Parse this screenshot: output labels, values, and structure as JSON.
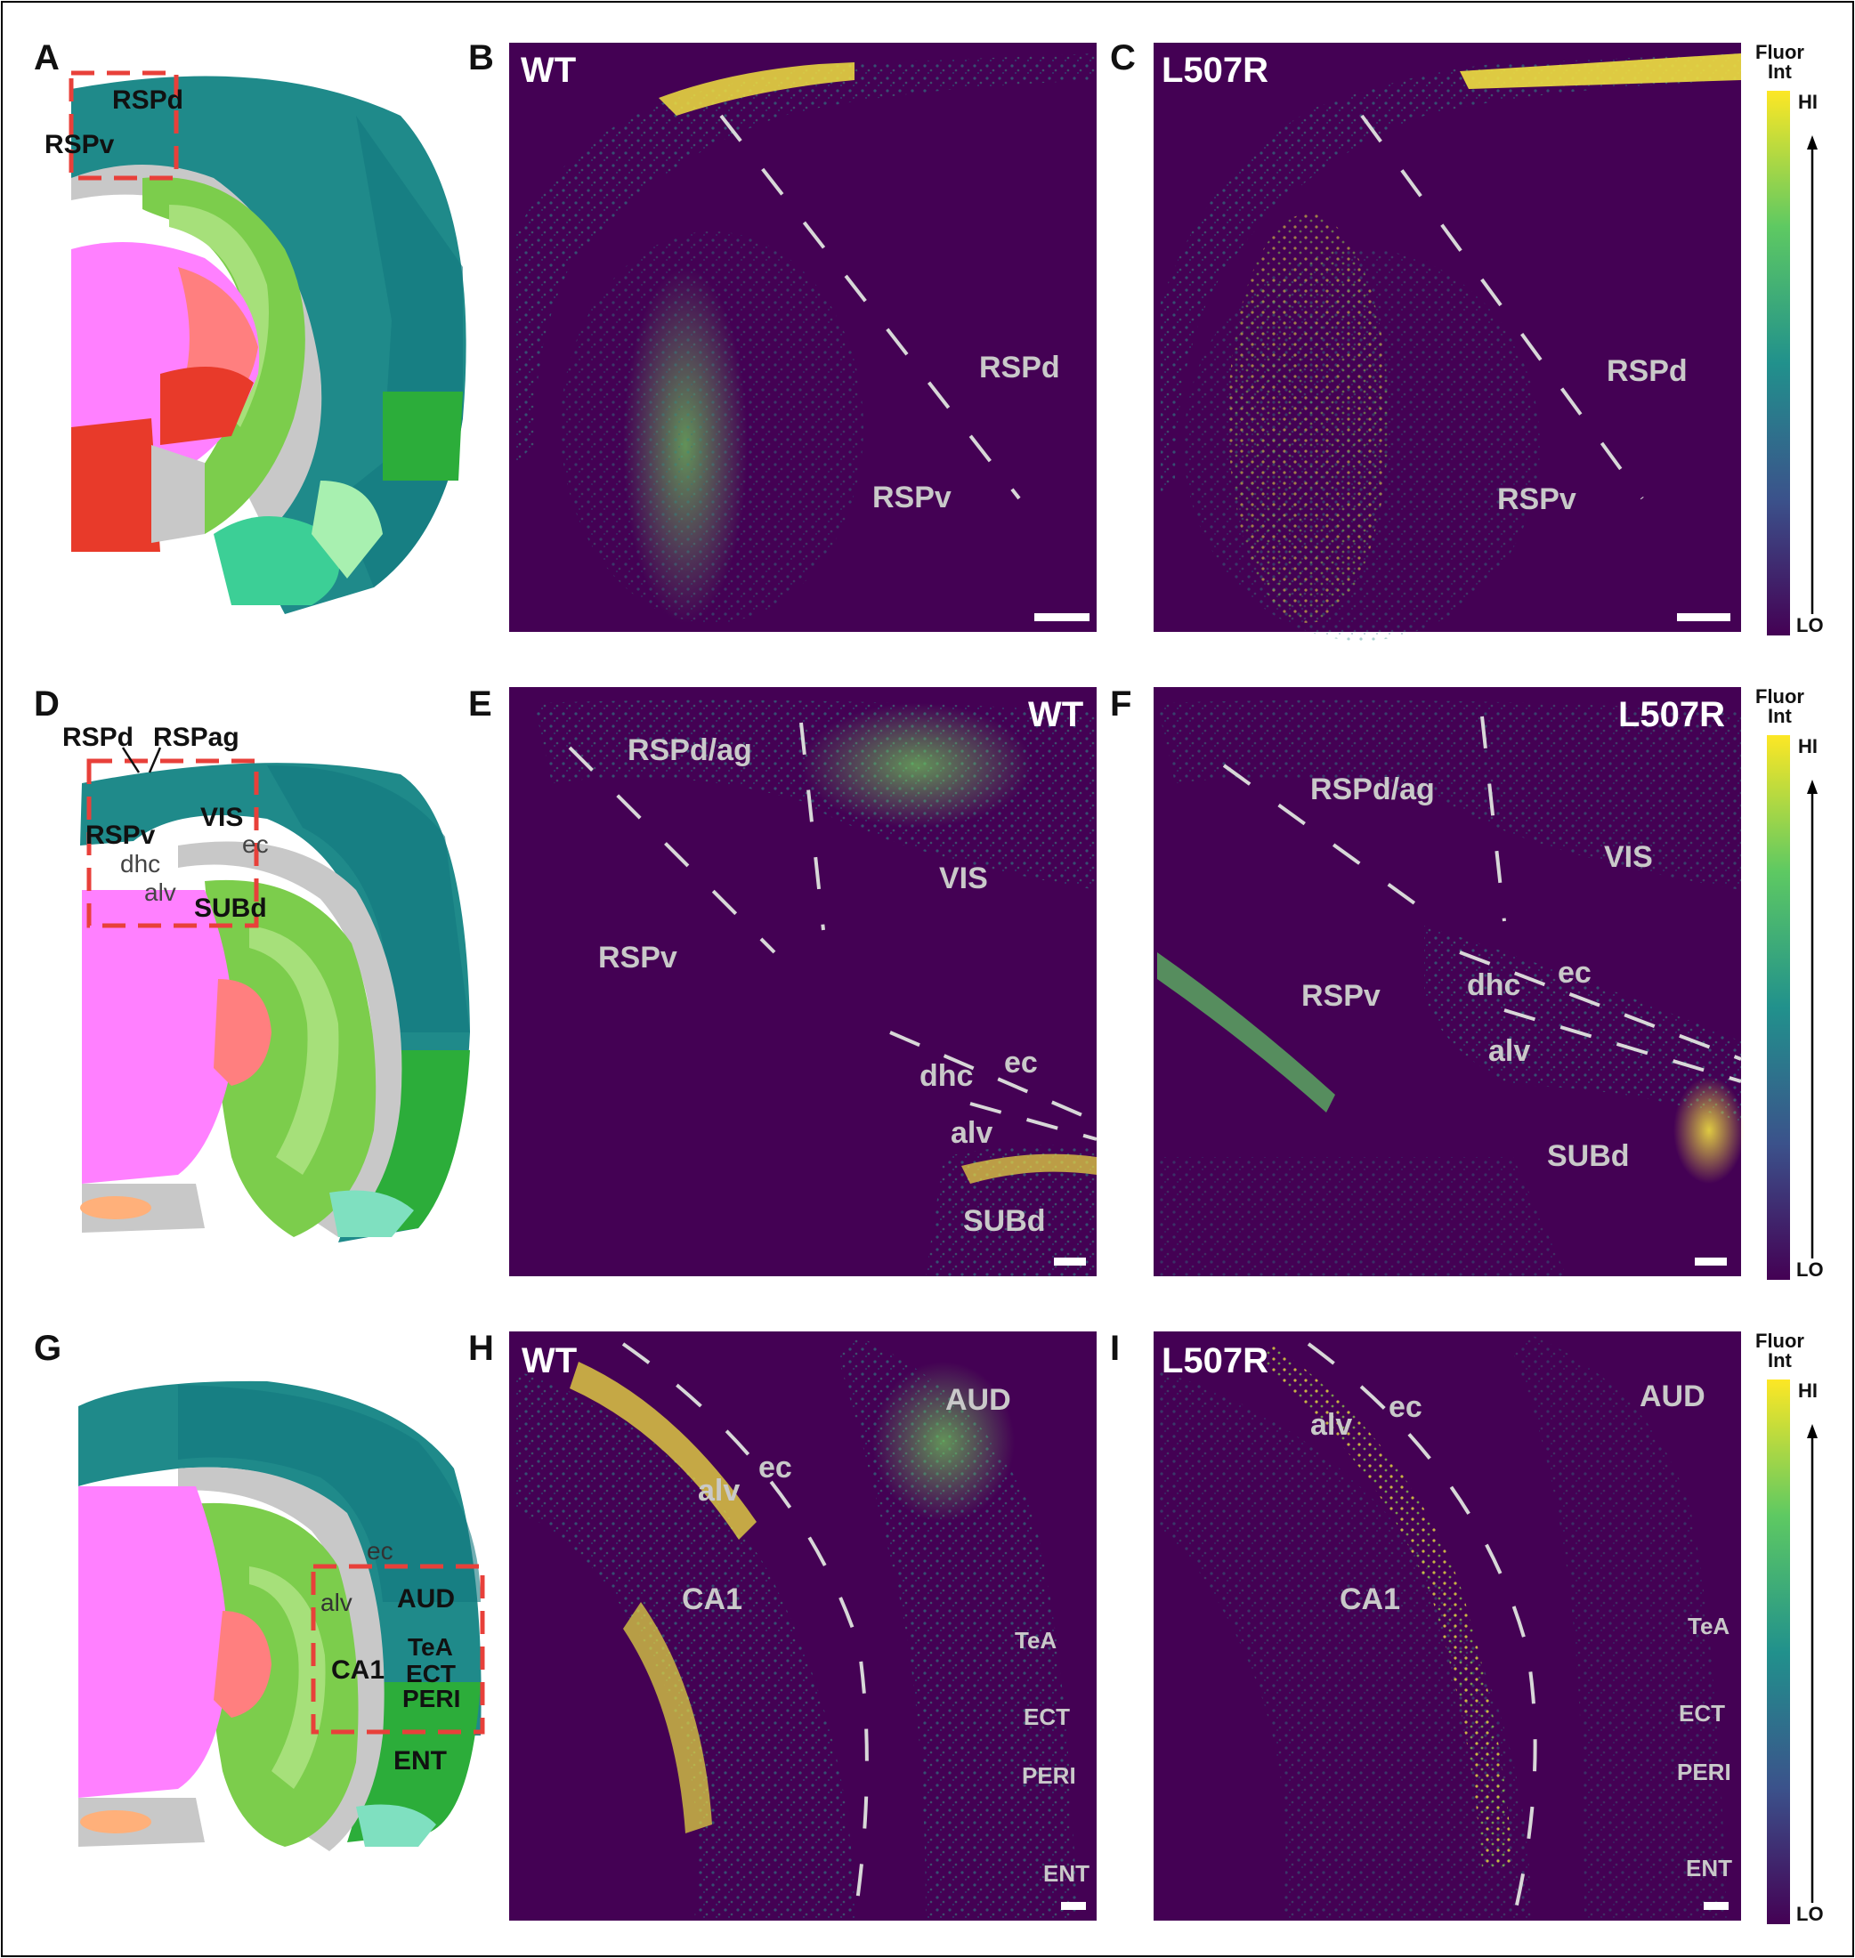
{
  "panel_letters": {
    "A": "A",
    "B": "B",
    "C": "C",
    "D": "D",
    "E": "E",
    "F": "F",
    "G": "G",
    "H": "H",
    "I": "I"
  },
  "genotypes": {
    "wt": "WT",
    "mut": "L507R"
  },
  "colorbar": {
    "title_line1": "Fluor",
    "title_line2": "Int",
    "hi": "HI",
    "lo": "LO",
    "colors": [
      "#fde725",
      "#5ec962",
      "#21918c",
      "#3b528b",
      "#440154"
    ]
  },
  "row1": {
    "atlas_labels": {
      "rspd": "RSPd",
      "rspv": "RSPv"
    },
    "image_labels": {
      "rspd": "RSPd",
      "rspv": "RSPv"
    }
  },
  "row2": {
    "atlas_labels": {
      "rspd": "RSPd",
      "rspag": "RSPag",
      "rspv": "RSPv",
      "vis": "VIS",
      "dhc": "dhc",
      "ec": "ec",
      "alv": "alv",
      "subd": "SUBd"
    },
    "image_labels": {
      "rspdag": "RSPd/ag",
      "vis": "VIS",
      "rspv": "RSPv",
      "dhc": "dhc",
      "ec": "ec",
      "alv": "alv",
      "subd": "SUBd"
    }
  },
  "row3": {
    "atlas_labels": {
      "ec": "ec",
      "alv": "alv",
      "aud": "AUD",
      "ca1": "CA1",
      "tea": "TeA",
      "ect": "ECT",
      "peri": "PERI",
      "ent": "ENT"
    },
    "image_labels": {
      "aud": "AUD",
      "alv": "alv",
      "ec": "ec",
      "ca1": "CA1",
      "tea": "TeA",
      "ect": "ECT",
      "peri": "PERI",
      "ent": "ENT"
    }
  },
  "palette": {
    "cortex_teal": "#1f8a8a",
    "cortex_dark": "#127a7e",
    "hippo_green": "#7ccd4c",
    "hippo_light": "#a6e07a",
    "thal_pink": "#ff80ff",
    "thal_red": "#ff6b6b",
    "fiber_gray": "#c8c8c8",
    "ent_green": "#2cad3a",
    "mint": "#7fe0c0",
    "dashed_red": "#e8403a",
    "bg_purple": "#440154"
  }
}
